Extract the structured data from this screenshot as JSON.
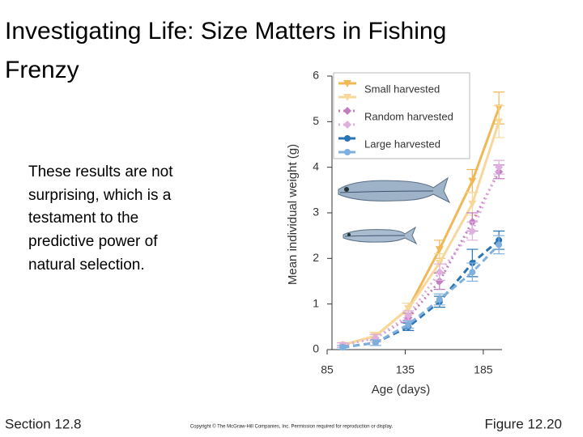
{
  "title_lines": [
    "Investigating Life: Size Matters in Fishing",
    "Frenzy"
  ],
  "body_lines": [
    "These results are not",
    "surprising, which is a",
    "testament to the",
    "predictive power of",
    "natural selection."
  ],
  "footer": {
    "left": "Section 12.8",
    "center": "Copyright © The McGraw-Hill Companies, Inc. Permission required for reproduction or display.",
    "right": "Figure 12.20"
  },
  "chart_data": {
    "type": "line",
    "x_label": "Age (days)",
    "y_label": "Mean individual weight (g)",
    "x": [
      95,
      116,
      137,
      157,
      178,
      195
    ],
    "xlim": [
      85,
      197
    ],
    "xticks": [
      85,
      135,
      185
    ],
    "ylim": [
      0,
      6
    ],
    "yticks": [
      0,
      1,
      2,
      3,
      4,
      5,
      6
    ],
    "legend": "top-left",
    "series": [
      {
        "name": "Small harvested",
        "color": "#f0b857",
        "marker": "triangle-down",
        "linestyle": "solid",
        "values": [
          0.1,
          0.3,
          0.9,
          2.2,
          3.7,
          5.3
        ],
        "errors": [
          0.05,
          0.08,
          0.12,
          0.2,
          0.25,
          0.35
        ]
      },
      {
        "color": "#f7d89a",
        "marker": "triangle-down",
        "linestyle": "solid",
        "values": [
          0.1,
          0.3,
          0.9,
          1.9,
          3.2,
          5.0
        ],
        "errors": [
          0.05,
          0.08,
          0.12,
          0.2,
          0.25,
          0.35
        ]
      },
      {
        "name": "Random harvested",
        "color": "#c27cc0",
        "marker": "diamond",
        "linestyle": "dotted",
        "values": [
          0.1,
          0.25,
          0.7,
          1.5,
          2.8,
          3.9
        ],
        "errors": [
          0.05,
          0.08,
          0.1,
          0.18,
          0.2,
          0.15
        ]
      },
      {
        "color": "#dfb0de",
        "marker": "diamond",
        "linestyle": "dotted",
        "values": [
          0.1,
          0.25,
          0.75,
          1.7,
          2.6,
          4.0
        ],
        "errors": [
          0.05,
          0.08,
          0.1,
          0.18,
          0.2,
          0.15
        ]
      },
      {
        "name": "Large harvested",
        "color": "#2a74b5",
        "marker": "circle",
        "linestyle": "dashed",
        "values": [
          0.05,
          0.15,
          0.5,
          1.05,
          1.9,
          2.4
        ],
        "errors": [
          0.04,
          0.06,
          0.08,
          0.12,
          0.3,
          0.2
        ]
      },
      {
        "color": "#7fb0dd",
        "marker": "circle",
        "linestyle": "dashed",
        "values": [
          0.05,
          0.15,
          0.55,
          1.1,
          1.7,
          2.3
        ],
        "errors": [
          0.04,
          0.06,
          0.08,
          0.12,
          0.2,
          0.2
        ]
      }
    ]
  }
}
